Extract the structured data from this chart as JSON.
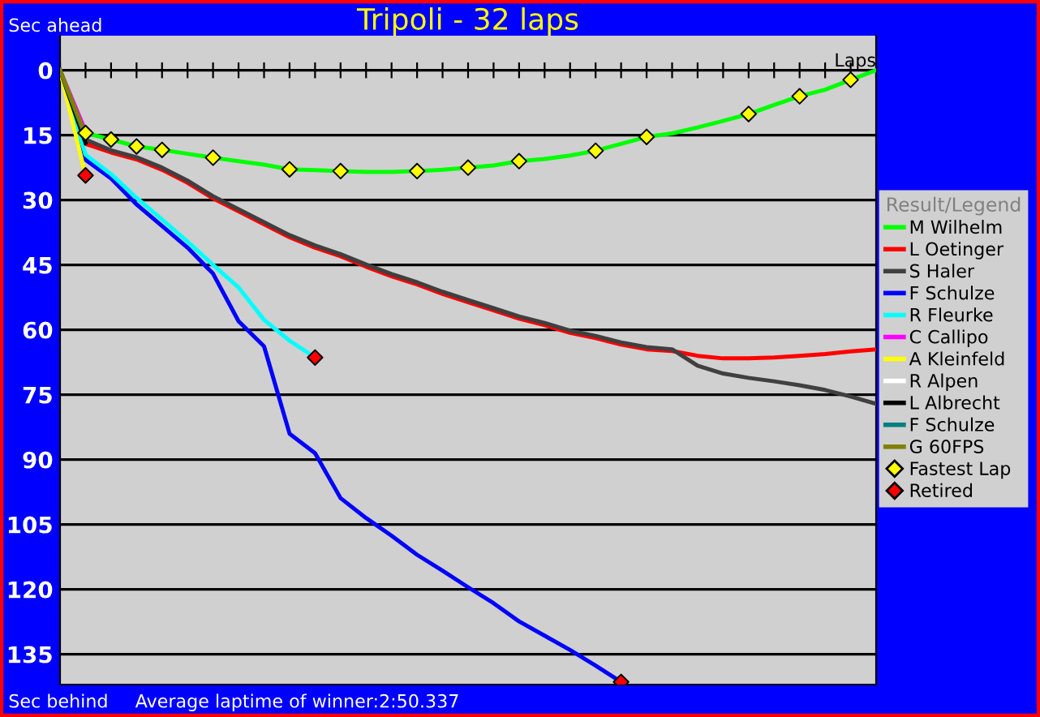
{
  "chart_data": {
    "type": "line",
    "title": "Tripoli - 32 laps",
    "xlabel": "Laps",
    "legend_title": "Result/Legend",
    "annotations": [
      "Sec ahead",
      "Sec behind",
      "Average laptime of winner:2:50.337"
    ],
    "categories": [
      null,
      null,
      null,
      null,
      null,
      null,
      null,
      null,
      null,
      null,
      null,
      null,
      null,
      null,
      null,
      null,
      null,
      null,
      null,
      null,
      null,
      null,
      null,
      null,
      null,
      null,
      null,
      null,
      null,
      null,
      null,
      null,
      null
    ],
    "ylim": [
      142,
      -8
    ],
    "yticks": [
      0,
      15,
      30,
      45,
      60,
      75,
      90,
      105,
      120,
      135
    ],
    "grid": "y",
    "legend": "right",
    "tick_labels": "y",
    "series": [
      {
        "name": "M Wilhelm",
        "color": "#00ff00",
        "values": [
          0,
          14.5,
          16,
          17.6,
          18.4,
          19.3,
          20.2,
          21,
          21.8,
          22.9,
          23.1,
          23.3,
          23.5,
          23.5,
          23.3,
          23,
          22.5,
          22,
          21,
          20.5,
          19.7,
          18.6,
          17,
          15.4,
          14.6,
          13.2,
          11.7,
          10.1,
          8,
          6,
          4.5,
          2.2,
          0
        ]
      },
      {
        "name": "L Oetinger",
        "color": "#ff0000",
        "values": [
          0,
          17,
          19,
          20.6,
          23,
          26,
          29.6,
          32.6,
          35.6,
          38.6,
          41,
          43,
          45.4,
          47.6,
          49.5,
          51.7,
          53.6,
          55.5,
          57.4,
          58.9,
          60.7,
          61.9,
          63.4,
          64.5,
          64.9,
          66,
          66.6,
          66.6,
          66.4,
          66,
          65.6,
          65,
          64.5
        ]
      },
      {
        "name": "S Haler",
        "color": "#404040",
        "values": [
          0,
          16,
          18.5,
          20.1,
          22.5,
          25.5,
          29.1,
          32.1,
          35.1,
          38.1,
          40.5,
          42.5,
          44.9,
          47.1,
          49,
          51.2,
          53.1,
          55,
          56.9,
          58.4,
          60.2,
          61.4,
          62.9,
          64,
          64.5,
          68.3,
          70.1,
          71.1,
          71.9,
          72.8,
          73.9,
          75.4,
          77.1
        ]
      },
      {
        "name": "F Schulze",
        "color": "#0000ff",
        "values": [
          0,
          20.7,
          25,
          31,
          36,
          41,
          47,
          58,
          63.8,
          84,
          88.5,
          98.9,
          103.5,
          107.6,
          112,
          115.7,
          119.5,
          123.2,
          127.4,
          130.7,
          134,
          137.6,
          141.4,
          null,
          null,
          null,
          null,
          null,
          null,
          null,
          null,
          null,
          null
        ]
      },
      {
        "name": "R Fleurke",
        "color": "#00ffff",
        "values": [
          0,
          19.5,
          24,
          29.5,
          34.5,
          39.6,
          45,
          50.2,
          57.7,
          62.5,
          66.4,
          null,
          null,
          null,
          null,
          null,
          null,
          null,
          null,
          null,
          null,
          null,
          null,
          null,
          null,
          null,
          null,
          null,
          null,
          null,
          null,
          null,
          null
        ]
      },
      {
        "name": "C Callipo",
        "color": "#ff00ff",
        "values": [
          0,
          14,
          null,
          null,
          null,
          null,
          null,
          null,
          null,
          null,
          null,
          null,
          null,
          null,
          null,
          null,
          null,
          null,
          null,
          null,
          null,
          null,
          null,
          null,
          null,
          null,
          null,
          null,
          null,
          null,
          null,
          null,
          null
        ]
      },
      {
        "name": "A Kleinfeld",
        "color": "#ffff00",
        "values": [
          0,
          24.3,
          null,
          null,
          null,
          null,
          null,
          null,
          null,
          null,
          null,
          null,
          null,
          null,
          null,
          null,
          null,
          null,
          null,
          null,
          null,
          null,
          null,
          null,
          null,
          null,
          null,
          null,
          null,
          null,
          null,
          null,
          null
        ]
      },
      {
        "name": "R Alpen",
        "color": "#ffffff",
        "values": [
          null,
          null,
          null,
          null,
          null,
          null,
          null,
          null,
          null,
          null,
          null,
          null,
          null,
          null,
          null,
          null,
          null,
          null,
          null,
          null,
          null,
          null,
          null,
          null,
          null,
          null,
          null,
          null,
          null,
          null,
          null,
          null,
          null
        ]
      },
      {
        "name": "L Albrecht",
        "color": "#000000",
        "values": [
          0,
          16.8,
          null,
          null,
          null,
          null,
          null,
          null,
          null,
          null,
          null,
          null,
          null,
          null,
          null,
          null,
          null,
          null,
          null,
          null,
          null,
          null,
          null,
          null,
          null,
          null,
          null,
          null,
          null,
          null,
          null,
          null,
          null
        ]
      },
      {
        "name": "F Schulze",
        "color": "#008080",
        "values": [
          0,
          15.5,
          null,
          null,
          null,
          null,
          null,
          null,
          null,
          null,
          null,
          null,
          null,
          null,
          null,
          null,
          null,
          null,
          null,
          null,
          null,
          null,
          null,
          null,
          null,
          null,
          null,
          null,
          null,
          null,
          null,
          null,
          null
        ]
      },
      {
        "name": "G 60FPS",
        "color": "#808000",
        "values": [
          0,
          15,
          null,
          null,
          null,
          null,
          null,
          null,
          null,
          null,
          null,
          null,
          null,
          null,
          null,
          null,
          null,
          null,
          null,
          null,
          null,
          null,
          null,
          null,
          null,
          null,
          null,
          null,
          null,
          null,
          null,
          null,
          null
        ]
      },
      {
        "name": "Fastest Lap",
        "type": "scatter",
        "marker": "diamond",
        "color": "#ffff00",
        "values": [
          null,
          14.5,
          16,
          17.6,
          18.4,
          null,
          20.2,
          null,
          null,
          22.9,
          null,
          23.3,
          null,
          null,
          23.3,
          null,
          22.5,
          null,
          21,
          null,
          null,
          18.6,
          null,
          15.4,
          null,
          null,
          null,
          10.1,
          null,
          6,
          null,
          2.2,
          null
        ]
      },
      {
        "name": "Retired",
        "type": "scatter",
        "marker": "diamond",
        "color": "#ff0000",
        "values": [
          null,
          24.3,
          null,
          null,
          null,
          null,
          null,
          null,
          null,
          null,
          66.4,
          null,
          null,
          null,
          null,
          null,
          null,
          null,
          null,
          null,
          null,
          null,
          141.4,
          null,
          null,
          null,
          null,
          null,
          null,
          null,
          null,
          null,
          null
        ]
      }
    ]
  }
}
